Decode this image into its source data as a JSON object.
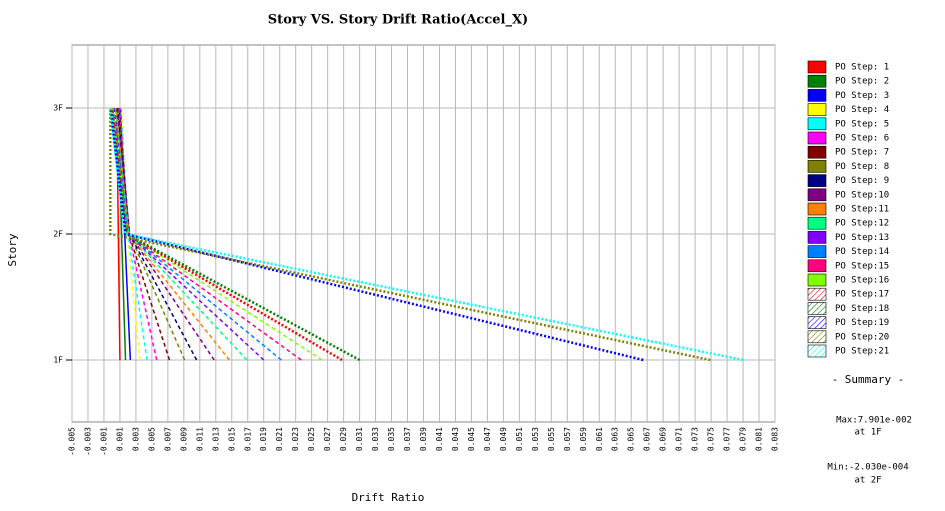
{
  "chart_data": {
    "type": "line",
    "title": "Story VS. Story Drift Ratio(Accel_X)",
    "x_label": "Drift Ratio",
    "y_label": "Story",
    "categories": [
      "1F",
      "2F",
      "3F"
    ],
    "xlim": [
      -0.005,
      0.083
    ],
    "xticks": [
      -0.005,
      -0.003,
      -0.001,
      0.001,
      0.003,
      0.005,
      0.007,
      0.009,
      0.011,
      0.013,
      0.015,
      0.017,
      0.019,
      0.021,
      0.023,
      0.025,
      0.027,
      0.029,
      0.031,
      0.033,
      0.035,
      0.037,
      0.039,
      0.041,
      0.043,
      0.045,
      0.047,
      0.049,
      0.051,
      0.053,
      0.055,
      0.057,
      0.059,
      0.061,
      0.063,
      0.065,
      0.067,
      0.069,
      0.071,
      0.073,
      0.075,
      0.077,
      0.079,
      0.081,
      0.083
    ],
    "grid": true,
    "legend": "right",
    "series": [
      {
        "name": "PO Step: 1",
        "color": "#ff0000",
        "values": [
          0.001,
          0.0008,
          0.0006
        ]
      },
      {
        "name": "PO Step: 2",
        "color": "#008000",
        "values": [
          0.0017,
          0.0012,
          0.0009
        ]
      },
      {
        "name": "PO Step: 3",
        "color": "#0000ff",
        "values": [
          0.0023,
          0.0016,
          0.0011
        ]
      },
      {
        "name": "PO Step: 4",
        "color": "#ffff00",
        "values": [
          0.0035,
          0.0019,
          0.0012
        ]
      },
      {
        "name": "PO Step: 5",
        "color": "#00ffff",
        "values": [
          0.0044,
          0.002,
          0.0011
        ]
      },
      {
        "name": "PO Step: 6",
        "color": "#ff00ff",
        "values": [
          0.0056,
          0.0021,
          0.001
        ]
      },
      {
        "name": "PO Step: 7",
        "color": "#800000",
        "values": [
          0.0072,
          0.0021,
          0.0009
        ]
      },
      {
        "name": "PO Step: 8",
        "color": "#808000",
        "values": [
          0.0091,
          0.0022,
          0.0008
        ]
      },
      {
        "name": "PO Step: 9",
        "color": "#000080",
        "values": [
          0.0106,
          0.0022,
          0.0007
        ]
      },
      {
        "name": "PO Step:10",
        "color": "#800080",
        "values": [
          0.0128,
          0.0022,
          0.0006
        ]
      },
      {
        "name": "PO Step:11",
        "color": "#ff8000",
        "values": [
          0.0147,
          0.0021,
          0.0005
        ]
      },
      {
        "name": "PO Step:12",
        "color": "#00ff80",
        "values": [
          0.0169,
          0.0021,
          0.0004
        ]
      },
      {
        "name": "PO Step:13",
        "color": "#8000ff",
        "values": [
          0.019,
          0.002,
          0.0003
        ]
      },
      {
        "name": "PO Step:14",
        "color": "#0080ff",
        "values": [
          0.0212,
          0.002,
          0.0002
        ]
      },
      {
        "name": "PO Step:15",
        "color": "#ff0080",
        "values": [
          0.0237,
          0.0019,
          0.0001
        ]
      },
      {
        "name": "PO Step:16",
        "color": "#80ff00",
        "values": [
          0.0263,
          0.0019,
          0.0001
        ]
      },
      {
        "name": "PO Step:17",
        "color": "#ff0000",
        "hatch": true,
        "values": [
          0.0288,
          0.0018,
          0.0
        ]
      },
      {
        "name": "PO Step:18",
        "color": "#008000",
        "hatch": true,
        "values": [
          0.031,
          0.0018,
          -0.0001
        ]
      },
      {
        "name": "PO Step:19",
        "color": "#0000ff",
        "hatch": true,
        "values": [
          0.0665,
          0.0017,
          -0.0002
        ]
      },
      {
        "name": "PO Step:20",
        "color": "#808000",
        "hatch": true,
        "values": [
          0.0749,
          -0.000203,
          -0.0002
        ]
      },
      {
        "name": "PO Step:21",
        "color": "#00ffff",
        "hatch": true,
        "values": [
          0.07901,
          0.0016,
          -0.0002
        ]
      }
    ],
    "summary": {
      "title": "- Summary -",
      "max": "Max:7.901e-002",
      "max_at": "at 1F",
      "min": "Min:-2.030e-004",
      "min_at": "at 2F"
    }
  }
}
